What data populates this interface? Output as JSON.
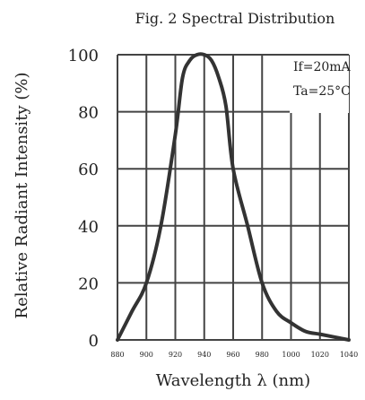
{
  "chart_data": {
    "type": "line",
    "title": "Fig. 2 Spectral Distribution",
    "xlabel": "Wavelength λ (nm)",
    "ylabel": "Relative Radiant Intensity (%)",
    "xlim": [
      880,
      1040
    ],
    "ylim": [
      0,
      100
    ],
    "x_ticks": [
      "880",
      "900",
      "920",
      "940",
      "960",
      "980",
      "1000",
      "1020",
      "1040"
    ],
    "y_ticks": [
      "0",
      "20",
      "40",
      "60",
      "80",
      "100"
    ],
    "grid": true,
    "annotations": [
      "If=20mA",
      "Ta=25°C"
    ],
    "series": [
      {
        "x": [
          880,
          890,
          900,
          910,
          920,
          925,
          930,
          935,
          940,
          945,
          950,
          955,
          960,
          970,
          980,
          990,
          1000,
          1010,
          1020,
          1030,
          1040
        ],
        "y": [
          0,
          10,
          20,
          40,
          72,
          92,
          98,
          100,
          100,
          98,
          92,
          82,
          60,
          40,
          20,
          10,
          6,
          3,
          2,
          1,
          0
        ]
      }
    ]
  },
  "colors": {
    "curve": "#333333",
    "grid": "#444444",
    "text": "#222222"
  }
}
